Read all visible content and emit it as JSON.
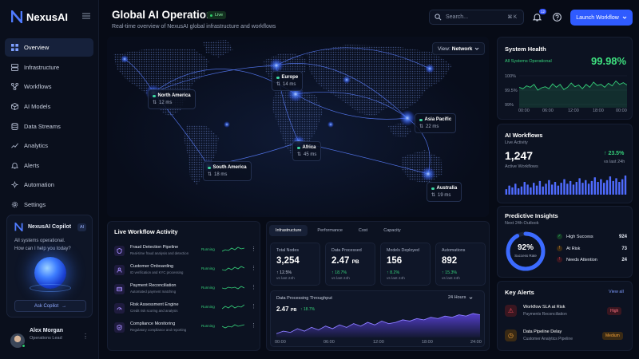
{
  "app": {
    "name": "NexusAI"
  },
  "sidebar": {
    "items": [
      {
        "label": "Overview",
        "icon": "grid-icon",
        "active": true
      },
      {
        "label": "Infrastructure",
        "icon": "server-icon"
      },
      {
        "label": "Workflows",
        "icon": "workflow-icon"
      },
      {
        "label": "AI Models",
        "icon": "cube-icon"
      },
      {
        "label": "Data Streams",
        "icon": "database-icon"
      },
      {
        "label": "Analytics",
        "icon": "analytics-icon"
      },
      {
        "label": "Alerts",
        "icon": "bell-icon"
      },
      {
        "label": "Automation",
        "icon": "automation-icon"
      },
      {
        "label": "Settings",
        "icon": "gear-icon"
      }
    ]
  },
  "copilot": {
    "title": "NexusAI Copilot",
    "badge": "AI",
    "message_1": "All systems operational.",
    "message_2": "How can I help you today?",
    "button": "Ask Copilot"
  },
  "user": {
    "name": "Alex Morgan",
    "role": "Operations Lead"
  },
  "header": {
    "title": "Global AI Operations",
    "live": "Live",
    "subtitle": "Real-time overview of NexusAI global infrastructure and workflows"
  },
  "search": {
    "placeholder": "Search...",
    "shortcut": "⌘ K"
  },
  "notifications": {
    "count": "12"
  },
  "launch": {
    "label": "Launch Workflow"
  },
  "map": {
    "view_prefix": "View:",
    "view_value": "Network",
    "regions": [
      {
        "name": "North America",
        "latency": "12 ms"
      },
      {
        "name": "Europe",
        "latency": "14 ms"
      },
      {
        "name": "Asia Pacific",
        "latency": "22 ms"
      },
      {
        "name": "Africa",
        "latency": "45 ms"
      },
      {
        "name": "South America",
        "latency": "18 ms"
      },
      {
        "name": "Australia",
        "latency": "19 ms"
      }
    ]
  },
  "system_health": {
    "title": "System Health",
    "status": "All Systems Operational",
    "value": "99.98%",
    "y_ticks": [
      "100%",
      "99.5%",
      "99%"
    ],
    "x_ticks": [
      "00:00",
      "06:00",
      "12:00",
      "18:00",
      "00:00"
    ],
    "series": [
      99.6,
      99.55,
      99.65,
      99.6,
      99.7,
      99.5,
      99.58,
      99.62,
      99.55,
      99.72,
      99.6,
      99.7,
      99.52,
      99.6,
      99.75,
      99.62,
      99.68,
      99.55,
      99.7,
      99.6,
      99.78,
      99.66,
      99.7,
      99.6,
      99.74,
      99.65,
      99.82,
      99.7,
      99.76,
      99.68
    ]
  },
  "ai_workflows": {
    "title": "AI Workflows",
    "sub": "Live Activity",
    "value": "1,247",
    "value_label": "Active Workflows",
    "change": "23.5%",
    "change_label": "vs last 24h",
    "bars": [
      6,
      10,
      8,
      12,
      7,
      9,
      14,
      11,
      8,
      13,
      10,
      15,
      9,
      12,
      16,
      11,
      14,
      10,
      13,
      17,
      12,
      15,
      11,
      14,
      18,
      13,
      16,
      12,
      15,
      19,
      14,
      17,
      13,
      16,
      20,
      15,
      18,
      14,
      17,
      21
    ]
  },
  "predictive": {
    "title": "Predictive Insights",
    "sub": "Next 24h Outlook",
    "ring_value": "92%",
    "ring_label": "Success Rate",
    "rate": 0.92,
    "items": [
      {
        "label": "High Success",
        "value": "924",
        "color": "#35d07a"
      },
      {
        "label": "At Risk",
        "value": "73",
        "color": "#f0a03a"
      },
      {
        "label": "Needs Attention",
        "value": "24",
        "color": "#ef4a5a"
      }
    ]
  },
  "alerts": {
    "title": "Key Alerts",
    "view_all": "View all",
    "items": [
      {
        "title": "Workflow SLA at Risk",
        "sub": "Payments Reconciliation",
        "level": "High"
      },
      {
        "title": "Data Pipeline Delay",
        "sub": "Customer Analytics Pipeline",
        "level": "Medium"
      }
    ]
  },
  "workflow_activity": {
    "title": "Live Workflow Activity",
    "rows": [
      {
        "name": "Fraud Detection Pipeline",
        "desc": "Real-time fraud analysis and detection",
        "status": "Running"
      },
      {
        "name": "Customer Onboarding",
        "desc": "ID verification and KYC processing",
        "status": "Running"
      },
      {
        "name": "Payment Reconciliation",
        "desc": "Automated payment matching",
        "status": "Running"
      },
      {
        "name": "Risk Assessment Engine",
        "desc": "Credit risk scoring and analysis",
        "status": "Running"
      },
      {
        "name": "Compliance Monitoring",
        "desc": "Regulatory compliance and reporting",
        "status": "Running"
      }
    ]
  },
  "infra": {
    "tabs": [
      "Infrastructure",
      "Performance",
      "Cost",
      "Capacity"
    ],
    "metrics": [
      {
        "label": "Total Nodes",
        "value": "3,254",
        "unit": "",
        "change": "12.5%",
        "sub": "vs last 24h"
      },
      {
        "label": "Data Processed",
        "value": "2.47",
        "unit": "PB",
        "change": "18.7%",
        "sub": "vs last 24h"
      },
      {
        "label": "Models Deployed",
        "value": "156",
        "unit": "",
        "change": "8.2%",
        "sub": "vs last 24h"
      },
      {
        "label": "Automations",
        "value": "892",
        "unit": "",
        "change": "15.3%",
        "sub": "vs last 24h"
      }
    ]
  },
  "throughput": {
    "title": "Data Processing Throughput",
    "range": "24 Hours",
    "value": "2.47",
    "unit": "PB",
    "change": "18.7%",
    "x_ticks": [
      "00:00",
      "06:00",
      "12:00",
      "18:00",
      "24:00"
    ],
    "series": [
      3,
      5,
      4,
      7,
      5,
      8,
      6,
      9,
      7,
      10,
      8,
      11,
      9,
      12,
      10,
      13,
      11,
      12,
      14,
      13,
      15,
      14,
      16,
      15,
      17,
      16,
      18,
      17,
      19,
      18
    ]
  },
  "colors": {
    "accent": "#2f5bff",
    "success": "#35d07a",
    "warning": "#f0a03a",
    "danger": "#ef4a5a"
  }
}
